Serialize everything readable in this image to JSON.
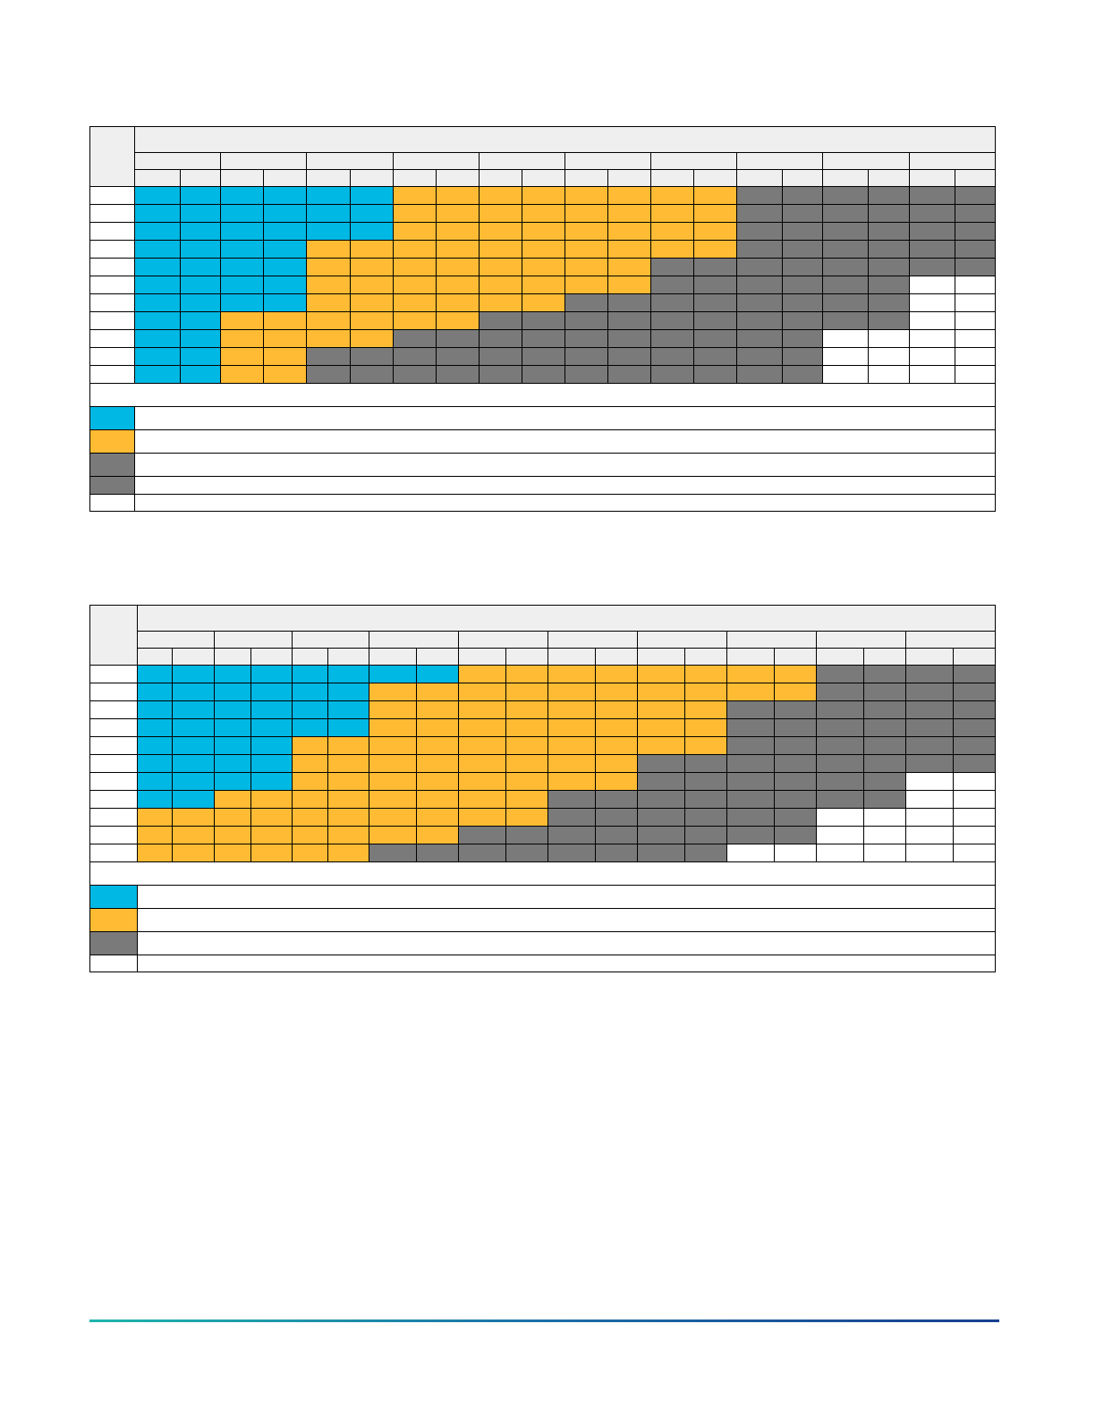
{
  "colors": {
    "blue": "#00b8e4",
    "orange": "#ffbb33",
    "gray": "#7a7a7a",
    "white": "#ffffff",
    "header": "#efefef"
  },
  "tables": [
    {
      "groups": 10,
      "rows": [
        "BBBBBBOOOOOOOOGGGGGG",
        "BBBBBBOOOOOOOOGGGGGG",
        "BBBBBBOOOOOOOOGGGGGG",
        "BBBBOOOOOOOOOOGGGGGG",
        "BBBBOOOOOOOOGGGGGGGG",
        "BBBBOOOOOOOOGGGGGGWW",
        "BBBBOOOOOOGGGGGGGGWW",
        "BBOOOOOOGGGGGGGGGGWW",
        "BBOOOOGGGGGGGGGGWWWW",
        "BBOOGGGGGGGGGGGGWWWW",
        "BBOOGGGGGGGGGGGGWWWW"
      ],
      "legend": [
        "B",
        "O",
        "G",
        "G",
        "W"
      ]
    },
    {
      "groups": 10,
      "rows": [
        "BBBBBBBBOOOOOOOOGGGG",
        "BBBBBBOOOOOOOOOOGGGG",
        "BBBBBBOOOOOOOOGGGGGG",
        "BBBBBBOOOOOOOOGGGGGG",
        "BBBBOOOOOOOOOOGGGGGG",
        "BBBBOOOOOOOOGGGGGGGG",
        "BBBBOOOOOOOOGGGGGGWW",
        "BBOOOOOOOOGGGGGGGGWW",
        "OOOOOOOOOOGGGGGGWWWW",
        "OOOOOOOOGGGGGGGGWWWW",
        "OOOOOOGGGGGGGGWWWWWW"
      ],
      "legend": [
        "B",
        "O",
        "G",
        "W"
      ]
    }
  ]
}
